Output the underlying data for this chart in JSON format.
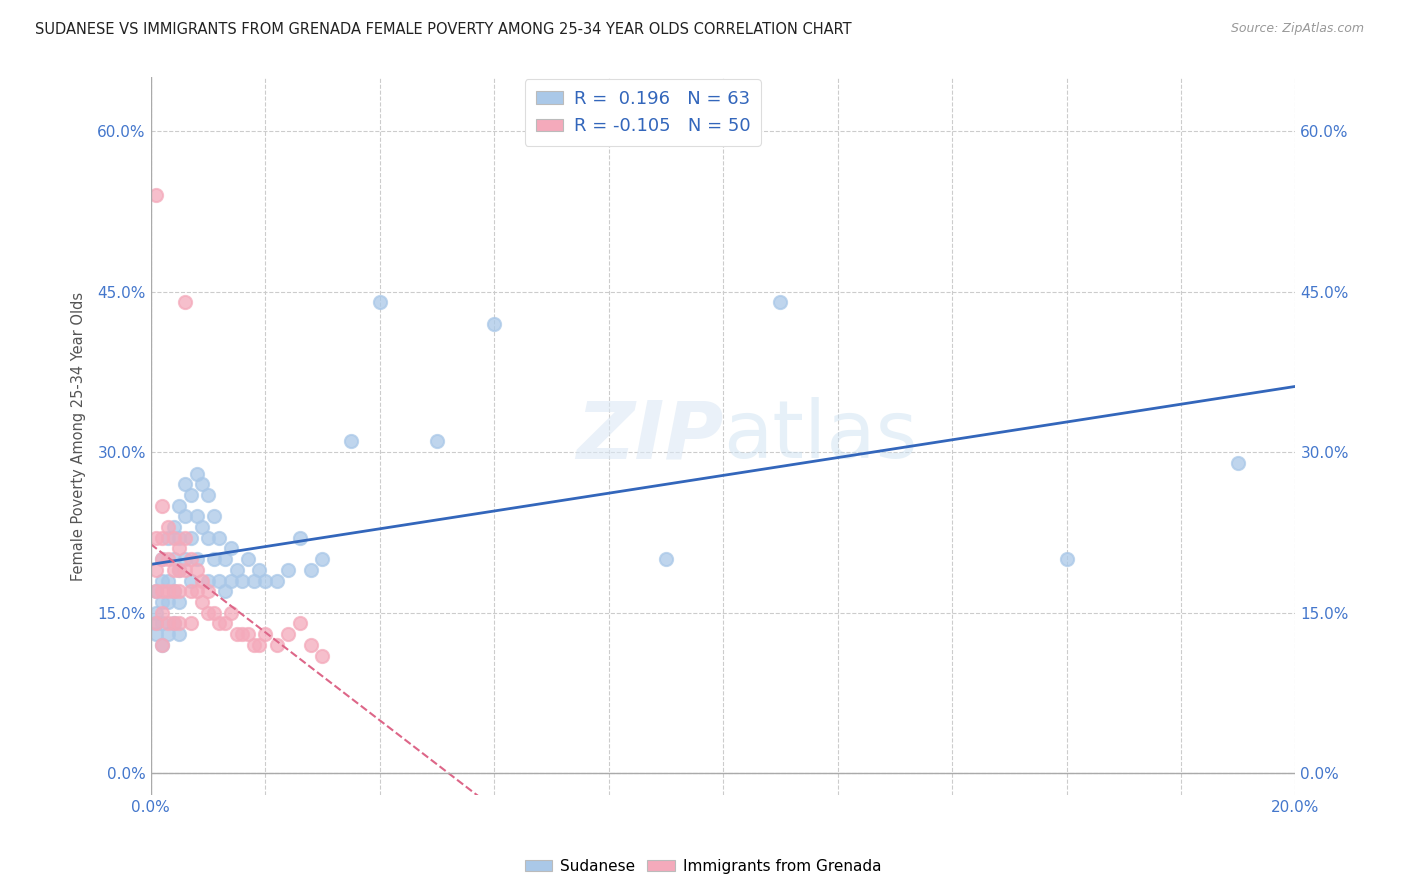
{
  "title": "SUDANESE VS IMMIGRANTS FROM GRENADA FEMALE POVERTY AMONG 25-34 YEAR OLDS CORRELATION CHART",
  "source": "Source: ZipAtlas.com",
  "ylabel": "Female Poverty Among 25-34 Year Olds",
  "xlim": [
    0.0,
    0.2
  ],
  "ylim": [
    -0.02,
    0.65
  ],
  "xticks": [
    0.0,
    0.02,
    0.04,
    0.06,
    0.08,
    0.1,
    0.12,
    0.14,
    0.16,
    0.18,
    0.2
  ],
  "yticks": [
    0.0,
    0.15,
    0.3,
    0.45,
    0.6
  ],
  "ytick_labels": [
    "0.0%",
    "15.0%",
    "30.0%",
    "45.0%",
    "60.0%"
  ],
  "xtick_labels": [
    "0.0%",
    "",
    "",
    "",
    "",
    "",
    "",
    "",
    "",
    "",
    "20.0%"
  ],
  "background_color": "#ffffff",
  "plot_background": "#ffffff",
  "grid_color": "#cccccc",
  "sudanese_color": "#aac8e8",
  "grenada_color": "#f4aabb",
  "sudanese_line_color": "#3366bb",
  "grenada_line_color": "#dd6688",
  "legend_R_sudanese": "0.196",
  "legend_N_sudanese": "63",
  "legend_R_grenada": "-0.105",
  "legend_N_grenada": "50",
  "sudanese_x": [
    0.001,
    0.001,
    0.001,
    0.001,
    0.002,
    0.002,
    0.002,
    0.002,
    0.002,
    0.003,
    0.003,
    0.003,
    0.003,
    0.004,
    0.004,
    0.004,
    0.004,
    0.005,
    0.005,
    0.005,
    0.005,
    0.005,
    0.006,
    0.006,
    0.006,
    0.007,
    0.007,
    0.007,
    0.008,
    0.008,
    0.008,
    0.009,
    0.009,
    0.01,
    0.01,
    0.01,
    0.011,
    0.011,
    0.012,
    0.012,
    0.013,
    0.013,
    0.014,
    0.014,
    0.015,
    0.016,
    0.017,
    0.018,
    0.019,
    0.02,
    0.022,
    0.024,
    0.026,
    0.028,
    0.03,
    0.035,
    0.04,
    0.05,
    0.06,
    0.09,
    0.11,
    0.16,
    0.19
  ],
  "sudanese_y": [
    0.17,
    0.15,
    0.14,
    0.13,
    0.2,
    0.18,
    0.16,
    0.14,
    0.12,
    0.22,
    0.18,
    0.16,
    0.13,
    0.23,
    0.2,
    0.17,
    0.14,
    0.25,
    0.22,
    0.19,
    0.16,
    0.13,
    0.27,
    0.24,
    0.2,
    0.26,
    0.22,
    0.18,
    0.28,
    0.24,
    0.2,
    0.27,
    0.23,
    0.26,
    0.22,
    0.18,
    0.24,
    0.2,
    0.22,
    0.18,
    0.2,
    0.17,
    0.21,
    0.18,
    0.19,
    0.18,
    0.2,
    0.18,
    0.19,
    0.18,
    0.18,
    0.19,
    0.22,
    0.19,
    0.2,
    0.31,
    0.44,
    0.31,
    0.42,
    0.2,
    0.44,
    0.2,
    0.29
  ],
  "grenada_x": [
    0.001,
    0.001,
    0.001,
    0.001,
    0.001,
    0.002,
    0.002,
    0.002,
    0.002,
    0.002,
    0.002,
    0.003,
    0.003,
    0.003,
    0.003,
    0.004,
    0.004,
    0.004,
    0.004,
    0.005,
    0.005,
    0.005,
    0.005,
    0.006,
    0.006,
    0.006,
    0.007,
    0.007,
    0.007,
    0.008,
    0.008,
    0.009,
    0.009,
    0.01,
    0.01,
    0.011,
    0.012,
    0.013,
    0.014,
    0.015,
    0.016,
    0.017,
    0.018,
    0.019,
    0.02,
    0.022,
    0.024,
    0.026,
    0.028,
    0.03
  ],
  "grenada_y": [
    0.54,
    0.22,
    0.19,
    0.17,
    0.14,
    0.25,
    0.22,
    0.2,
    0.17,
    0.15,
    0.12,
    0.23,
    0.2,
    0.17,
    0.14,
    0.22,
    0.19,
    0.17,
    0.14,
    0.21,
    0.19,
    0.17,
    0.14,
    0.44,
    0.22,
    0.19,
    0.2,
    0.17,
    0.14,
    0.19,
    0.17,
    0.18,
    0.16,
    0.17,
    0.15,
    0.15,
    0.14,
    0.14,
    0.15,
    0.13,
    0.13,
    0.13,
    0.12,
    0.12,
    0.13,
    0.12,
    0.13,
    0.14,
    0.12,
    0.11
  ]
}
